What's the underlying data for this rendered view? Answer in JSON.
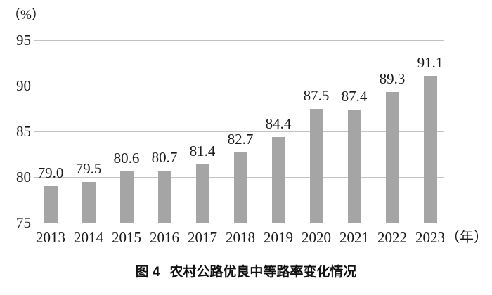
{
  "chart": {
    "y_axis_unit": "（%）",
    "x_axis_unit": "（年）",
    "caption_prefix": "图 4",
    "caption_text": "农村公路优良中等路率变化情况"
  },
  "chart_data": {
    "type": "bar",
    "title": "图4 农村公路优良中等路率变化情况",
    "categories": [
      "2013",
      "2014",
      "2015",
      "2016",
      "2017",
      "2018",
      "2019",
      "2020",
      "2021",
      "2022",
      "2023"
    ],
    "values": [
      79.0,
      79.5,
      80.6,
      80.7,
      81.4,
      82.7,
      84.4,
      87.5,
      87.4,
      89.3,
      91.1
    ],
    "xlabel": "（年）",
    "ylabel": "（%）",
    "ylim": [
      75,
      95
    ],
    "yticks": [
      75,
      80,
      85,
      90,
      95
    ],
    "grid": "horizontal",
    "legend": "none",
    "bar_color": "#a5a5a5",
    "gridline_color": "#c5c2c0",
    "text_color": "#1a1a1a",
    "value_label_decimals": 1
  }
}
